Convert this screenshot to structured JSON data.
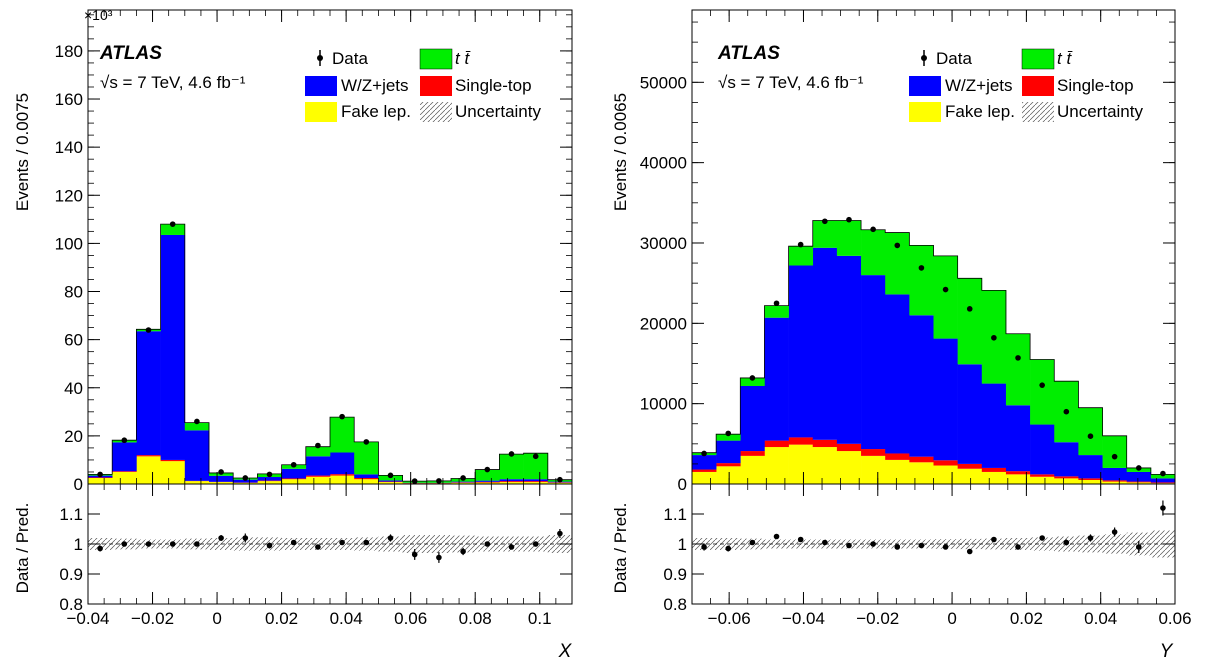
{
  "colors": {
    "ttbar": "#00ee00",
    "wz": "#0000ff",
    "single_top": "#ff0000",
    "fake": "#ffff00",
    "data": "#000000",
    "uncertainty": "#555555"
  },
  "panels": [
    {
      "atlas_label": "ATLAS",
      "energy_label": "√s = 7 TeV, 4.6 fb⁻¹",
      "legend": {
        "data": "Data",
        "ttbar": "t t̄",
        "wz": "W/Z+jets",
        "single_top": "Single-top",
        "fake": "Fake lep.",
        "uncertainty": "Uncertainty"
      },
      "ylabel": "Events / 0.0075",
      "exponent_label": "×10³",
      "ratio_ylabel": "Data / Pred.",
      "xlabel": "X",
      "main_yticks": [
        "0",
        "20",
        "40",
        "60",
        "80",
        "100",
        "120",
        "140",
        "160",
        "180"
      ],
      "ratio_yticks": [
        "0.8",
        "0.9",
        "1",
        "1.1"
      ],
      "xticks": [
        "−0.04",
        "−0.02",
        "0",
        "0.02",
        "0.04",
        "0.06",
        "0.08",
        "0.1"
      ]
    },
    {
      "atlas_label": "ATLAS",
      "energy_label": "√s = 7 TeV, 4.6 fb⁻¹",
      "legend": {
        "data": "Data",
        "ttbar": "t t̄",
        "wz": "W/Z+jets",
        "single_top": "Single-top",
        "fake": "Fake lep.",
        "uncertainty": "Uncertainty"
      },
      "ylabel": "Events / 0.0065",
      "exponent_label": "",
      "ratio_ylabel": "Data / Pred.",
      "xlabel": "Y",
      "main_yticks": [
        "0",
        "10000",
        "20000",
        "30000",
        "40000",
        "50000"
      ],
      "ratio_yticks": [
        "0.8",
        "0.9",
        "1",
        "1.1"
      ],
      "xticks": [
        "−0.06",
        "−0.04",
        "−0.02",
        "0",
        "0.02",
        "0.04",
        "0.06"
      ]
    }
  ],
  "chart_data": [
    {
      "type": "bar",
      "stacked": true,
      "xlabel": "X",
      "ylabel": "Events / 0.0075",
      "y_scale_factor": 1000,
      "xlim": [
        -0.04,
        0.11
      ],
      "ylim": [
        0,
        197
      ],
      "ratio_ylim": [
        0.8,
        1.2
      ],
      "bin_edges": [
        -0.04,
        -0.0325,
        -0.025,
        -0.0175,
        -0.01,
        -0.0025,
        0.005,
        0.0125,
        0.02,
        0.0275,
        0.035,
        0.0425,
        0.05,
        0.0575,
        0.065,
        0.0725,
        0.08,
        0.0875,
        0.095,
        0.1025,
        0.11
      ],
      "series": [
        {
          "name": "Fake lep.",
          "color_key": "fake",
          "values": [
            2.5,
            5,
            11.5,
            9.5,
            1.2,
            0.8,
            0.5,
            1.2,
            2,
            3,
            3.5,
            2,
            0.8,
            0.3,
            0.3,
            0.5,
            0.6,
            0.8,
            0.8,
            0.5
          ]
        },
        {
          "name": "Single-top",
          "color_key": "single_top",
          "values": [
            0.2,
            0.3,
            0.5,
            0.5,
            0.1,
            0.1,
            0.1,
            0.2,
            0.3,
            0.5,
            0.6,
            0.5,
            0.2,
            0.1,
            0.1,
            0.2,
            0.3,
            0.4,
            0.4,
            0.2
          ]
        },
        {
          "name": "W/Z+jets",
          "color_key": "wz",
          "values": [
            0.8,
            12,
            51.5,
            93.5,
            21,
            2.5,
            1.2,
            1.5,
            4,
            8,
            9,
            1.5,
            0.5,
            0.1,
            0.1,
            0.3,
            0.5,
            0.8,
            0.8,
            0.3
          ]
        },
        {
          "name": "t t̄",
          "color_key": "ttbar",
          "values": [
            0.5,
            0.9,
            0.8,
            4.5,
            3.2,
            1.2,
            0.7,
            1.3,
            1.7,
            4,
            14.7,
            13.5,
            2.1,
            0.7,
            0.8,
            1.3,
            4.6,
            10.4,
            10.8,
            0.8
          ]
        }
      ],
      "data_points": {
        "name": "Data",
        "values": [
          4,
          18.2,
          64,
          108,
          26,
          5,
          2.5,
          4,
          8,
          16,
          28,
          17.5,
          3.6,
          1.2,
          1.3,
          2.5,
          6,
          12.5,
          11.5,
          1.8
        ]
      },
      "ratio": {
        "values": [
          0.985,
          1.0,
          1.0,
          1.0,
          1.0,
          1.02,
          1.02,
          0.995,
          1.005,
          0.99,
          1.005,
          1.005,
          1.02,
          0.965,
          0.955,
          0.975,
          1.0,
          0.99,
          1.0,
          1.035
        ],
        "errors": [
          0.01,
          0.004,
          0.003,
          0.003,
          0.004,
          0.01,
          0.015,
          0.01,
          0.007,
          0.005,
          0.004,
          0.005,
          0.012,
          0.018,
          0.018,
          0.012,
          0.008,
          0.005,
          0.005,
          0.015
        ],
        "uncertainty_band": [
          0.02,
          0.018,
          0.015,
          0.015,
          0.018,
          0.02,
          0.022,
          0.022,
          0.02,
          0.02,
          0.02,
          0.022,
          0.025,
          0.03,
          0.03,
          0.028,
          0.025,
          0.025,
          0.025,
          0.03
        ]
      }
    },
    {
      "type": "bar",
      "stacked": true,
      "xlabel": "Y",
      "ylabel": "Events / 0.0065",
      "xlim": [
        -0.07,
        0.06
      ],
      "ylim": [
        0,
        59000
      ],
      "ratio_ylim": [
        0.8,
        1.2
      ],
      "bin_edges": [
        -0.07,
        -0.0635,
        -0.057,
        -0.0505,
        -0.044,
        -0.0375,
        -0.031,
        -0.0245,
        -0.018,
        -0.0115,
        -0.005,
        0.0015,
        0.008,
        0.0145,
        0.021,
        0.0275,
        0.034,
        0.0405,
        0.047,
        0.0535,
        0.06
      ],
      "series": [
        {
          "name": "Fake lep.",
          "color_key": "fake",
          "values": [
            1500,
            2200,
            3500,
            4600,
            4900,
            4600,
            4100,
            3500,
            3000,
            2700,
            2300,
            1900,
            1500,
            1200,
            900,
            700,
            500,
            300,
            200,
            100
          ]
        },
        {
          "name": "Single-top",
          "color_key": "single_top",
          "values": [
            300,
            400,
            600,
            800,
            900,
            900,
            900,
            850,
            800,
            700,
            650,
            600,
            500,
            400,
            300,
            250,
            200,
            150,
            100,
            100
          ]
        },
        {
          "name": "W/Z+jets",
          "color_key": "wz",
          "values": [
            1800,
            2800,
            8100,
            15300,
            21400,
            23900,
            23400,
            21650,
            19800,
            17600,
            15150,
            12400,
            10500,
            8200,
            6200,
            4250,
            2900,
            1550,
            1200,
            500
          ]
        },
        {
          "name": "t t̄",
          "color_key": "ttbar",
          "values": [
            300,
            800,
            1000,
            1500,
            2400,
            3400,
            4400,
            5650,
            7700,
            8700,
            10300,
            10700,
            11600,
            8900,
            8100,
            7600,
            5900,
            4000,
            500,
            500
          ]
        }
      ],
      "data_points": {
        "name": "Data",
        "values": [
          3800,
          6300,
          13200,
          22500,
          29800,
          32700,
          32900,
          31700,
          29700,
          26900,
          24200,
          21800,
          18200,
          15700,
          12300,
          9000,
          5950,
          3400,
          2000,
          1300
        ]
      },
      "ratio": {
        "values": [
          0.99,
          0.985,
          1.005,
          1.025,
          1.015,
          1.005,
          0.995,
          1.0,
          0.99,
          0.995,
          0.99,
          0.975,
          1.015,
          0.99,
          1.02,
          1.005,
          1.02,
          1.04,
          0.99,
          1.12
        ],
        "errors": [
          0.012,
          0.01,
          0.007,
          0.006,
          0.005,
          0.005,
          0.005,
          0.005,
          0.005,
          0.005,
          0.006,
          0.006,
          0.006,
          0.007,
          0.008,
          0.01,
          0.012,
          0.015,
          0.02,
          0.025
        ],
        "uncertainty_band": [
          0.02,
          0.02,
          0.018,
          0.015,
          0.015,
          0.015,
          0.015,
          0.015,
          0.015,
          0.015,
          0.016,
          0.017,
          0.018,
          0.02,
          0.022,
          0.025,
          0.028,
          0.032,
          0.038,
          0.045
        ]
      }
    }
  ]
}
